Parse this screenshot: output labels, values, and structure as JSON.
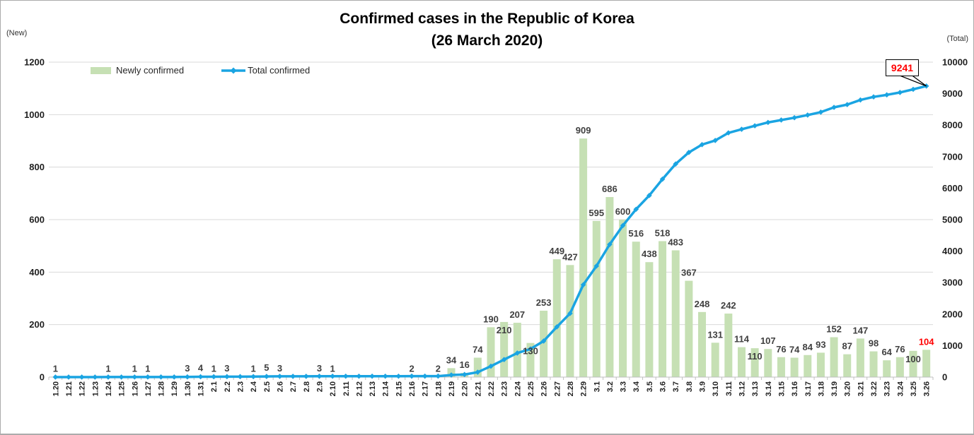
{
  "title": {
    "line1": "Confirmed cases in the Republic of Korea",
    "line2": "(26 March 2020)"
  },
  "axes": {
    "left_unit": "(New)",
    "right_unit": "(Total)",
    "left_ticks": [
      0,
      200,
      400,
      600,
      800,
      1000,
      1200
    ],
    "right_ticks": [
      0,
      1000,
      2000,
      3000,
      4000,
      5000,
      6000,
      7000,
      8000,
      9000,
      10000
    ],
    "left_max": 1200,
    "right_max": 10000
  },
  "legend": {
    "bar_label": "Newly confirmed",
    "line_label": "Total confirmed"
  },
  "callout": {
    "text": "9241"
  },
  "chart_data": {
    "type": "bar+line",
    "title": "Confirmed cases in the Republic of Korea (26 March 2020)",
    "categories": [
      "1.20",
      "1.21",
      "1.22",
      "1.23",
      "1.24",
      "1.25",
      "1.26",
      "1.27",
      "1.28",
      "1.29",
      "1.30",
      "1.31",
      "2.1",
      "2.2",
      "2.3",
      "2.4",
      "2.5",
      "2.6",
      "2.7",
      "2.8",
      "2.9",
      "2.10",
      "2.11",
      "2.12",
      "2.13",
      "2.14",
      "2.15",
      "2.16",
      "2.17",
      "2.18",
      "2.19",
      "2.20",
      "2.21",
      "2.22",
      "2.23",
      "2.24",
      "2.25",
      "2.26",
      "2.27",
      "2.28",
      "2.29",
      "3.1",
      "3.2",
      "3.3",
      "3.4",
      "3.5",
      "3.6",
      "3.7",
      "3.8",
      "3.9",
      "3.10",
      "3.11",
      "3.12",
      "3.13",
      "3.14",
      "3.15",
      "3.16",
      "3.17",
      "3.18",
      "3.19",
      "3.20",
      "3.21",
      "3.22",
      "3.23",
      "3.24",
      "3.25",
      "3.26"
    ],
    "series": [
      {
        "name": "Newly confirmed",
        "type": "bar",
        "axis": "left",
        "values": [
          1,
          0,
          0,
          0,
          1,
          0,
          1,
          1,
          0,
          0,
          3,
          4,
          1,
          3,
          0,
          1,
          5,
          3,
          0,
          0,
          3,
          1,
          0,
          0,
          0,
          0,
          0,
          2,
          0,
          2,
          34,
          16,
          74,
          190,
          210,
          207,
          130,
          253,
          449,
          427,
          909,
          595,
          686,
          600,
          516,
          438,
          518,
          483,
          367,
          248,
          131,
          242,
          114,
          110,
          107,
          76,
          74,
          84,
          93,
          152,
          87,
          147,
          98,
          64,
          76,
          100,
          104
        ]
      },
      {
        "name": "Total confirmed",
        "type": "line",
        "axis": "right",
        "values": [
          1,
          1,
          1,
          1,
          2,
          2,
          3,
          4,
          4,
          4,
          7,
          11,
          12,
          15,
          15,
          16,
          21,
          24,
          24,
          24,
          27,
          28,
          28,
          28,
          28,
          28,
          28,
          30,
          30,
          32,
          66,
          82,
          156,
          346,
          556,
          763,
          893,
          1146,
          1595,
          2022,
          2931,
          3526,
          4212,
          4812,
          5328,
          5766,
          6284,
          6767,
          7134,
          7382,
          7513,
          7755,
          7869,
          7979,
          8086,
          8162,
          8236,
          8320,
          8413,
          8565,
          8652,
          8799,
          8897,
          8961,
          9037,
          9137,
          9241
        ]
      }
    ],
    "label_rules": {
      "show_labels_for_nonzero_bars": true,
      "lowered_label_indices": [
        34,
        36,
        53,
        65
      ],
      "red_label_indices": [
        66
      ],
      "final_total_label": "9241"
    },
    "ylim_left": [
      0,
      1200
    ],
    "ylim_right": [
      0,
      10000
    ],
    "grid": true,
    "legend_position": "top-left-inside"
  },
  "colors": {
    "bar": "#c6e0b4",
    "line": "#1aa4e2",
    "grid": "#d9d9d9",
    "axis": "#bfbfbf",
    "data_label": "#404040",
    "axis_text": "#1f1f1f",
    "red": "#ff0000"
  }
}
